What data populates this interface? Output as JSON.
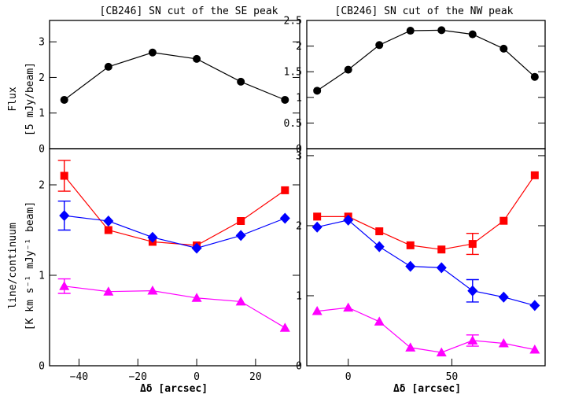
{
  "figure": {
    "left_title": "[CB246] SN cut of the SE peak",
    "right_title": "[CB246] SN cut of the NW peak",
    "ylabel_top_1": "Flux",
    "ylabel_top_2": "[5 mJy/beam]",
    "ylabel_bottom_1": "line/continuum",
    "ylabel_bottom_2": "[K km s⁻¹ mJy⁻¹ beam]",
    "xlabel": "Δδ [arcsec]"
  },
  "colors": {
    "red": "#ff0000",
    "blue": "#0000ff",
    "magenta": "#ff00ff",
    "black": "#000000"
  },
  "chart_data": [
    {
      "type": "line",
      "panel": "top-left",
      "title": "[CB246] SN cut of the SE peak",
      "xlabel": "",
      "ylabel": "Flux [5 mJy/beam]",
      "xlim": [
        -50,
        35
      ],
      "ylim": [
        0,
        3.6
      ],
      "xticks": [],
      "yticks": [
        0,
        1,
        2,
        3
      ],
      "series": [
        {
          "marker": "circle",
          "color": "#000000",
          "x": [
            -45,
            -30,
            -15,
            0,
            15,
            30
          ],
          "y": [
            1.37,
            2.3,
            2.7,
            2.52,
            1.88,
            1.37
          ]
        }
      ]
    },
    {
      "type": "line",
      "panel": "top-right",
      "title": "[CB246] SN cut of the NW peak",
      "xlabel": "",
      "ylabel": "",
      "xlim": [
        -20,
        95
      ],
      "ylim": [
        0,
        2.5
      ],
      "xticks": [],
      "yticks": [
        0,
        0.5,
        1,
        1.5,
        2,
        2.5
      ],
      "series": [
        {
          "marker": "circle",
          "color": "#000000",
          "x": [
            -15,
            0,
            15,
            30,
            45,
            60,
            75,
            90
          ],
          "y": [
            1.13,
            1.54,
            2.02,
            2.3,
            2.31,
            2.23,
            1.95,
            1.4
          ]
        }
      ]
    },
    {
      "type": "line",
      "panel": "bottom-left",
      "title": "",
      "xlabel": "Δδ [arcsec]",
      "ylabel": "line/continuum [K km s⁻¹ mJy⁻¹ beam]",
      "xlim": [
        -50,
        35
      ],
      "ylim": [
        0,
        2.4
      ],
      "xticks": [
        -40,
        -20,
        0,
        20
      ],
      "yticks": [
        0,
        1,
        2
      ],
      "series": [
        {
          "marker": "square",
          "color": "#ff0000",
          "x": [
            -45,
            -30,
            -15,
            0,
            15,
            30
          ],
          "y": [
            2.1,
            1.5,
            1.37,
            1.33,
            1.6,
            1.94
          ],
          "err": [
            [
              -45,
              0.17
            ]
          ]
        },
        {
          "marker": "diamond",
          "color": "#0000ff",
          "x": [
            -45,
            -30,
            -15,
            0,
            15,
            30
          ],
          "y": [
            1.66,
            1.6,
            1.42,
            1.3,
            1.44,
            1.63
          ],
          "err": [
            [
              -45,
              0.16
            ]
          ]
        },
        {
          "marker": "triangle",
          "color": "#ff00ff",
          "x": [
            -45,
            -30,
            -15,
            0,
            15,
            30
          ],
          "y": [
            0.88,
            0.82,
            0.83,
            0.75,
            0.71,
            0.42
          ],
          "err": [
            [
              -45,
              0.08
            ]
          ]
        }
      ]
    },
    {
      "type": "line",
      "panel": "bottom-right",
      "title": "",
      "xlabel": "Δδ [arcsec]",
      "ylabel": "",
      "xlim": [
        -20,
        95
      ],
      "ylim": [
        0,
        3.1
      ],
      "xticks": [
        0,
        50
      ],
      "yticks": [
        0,
        1,
        2,
        3
      ],
      "series": [
        {
          "marker": "square",
          "color": "#ff0000",
          "x": [
            -15,
            0,
            15,
            30,
            45,
            60,
            75,
            90
          ],
          "y": [
            2.13,
            2.13,
            1.92,
            1.72,
            1.66,
            1.74,
            2.07,
            2.72
          ],
          "err": [
            [
              60,
              0.15
            ]
          ]
        },
        {
          "marker": "diamond",
          "color": "#0000ff",
          "x": [
            -15,
            0,
            15,
            30,
            45,
            60,
            75,
            90
          ],
          "y": [
            1.98,
            2.08,
            1.7,
            1.42,
            1.4,
            1.07,
            0.98,
            0.86
          ],
          "err": [
            [
              60,
              0.16
            ]
          ]
        },
        {
          "marker": "triangle",
          "color": "#ff00ff",
          "x": [
            -15,
            0,
            15,
            30,
            45,
            60,
            75,
            90
          ],
          "y": [
            0.78,
            0.83,
            0.63,
            0.26,
            0.19,
            0.36,
            0.32,
            0.23
          ],
          "err": [
            [
              60,
              0.08
            ]
          ]
        }
      ]
    }
  ]
}
